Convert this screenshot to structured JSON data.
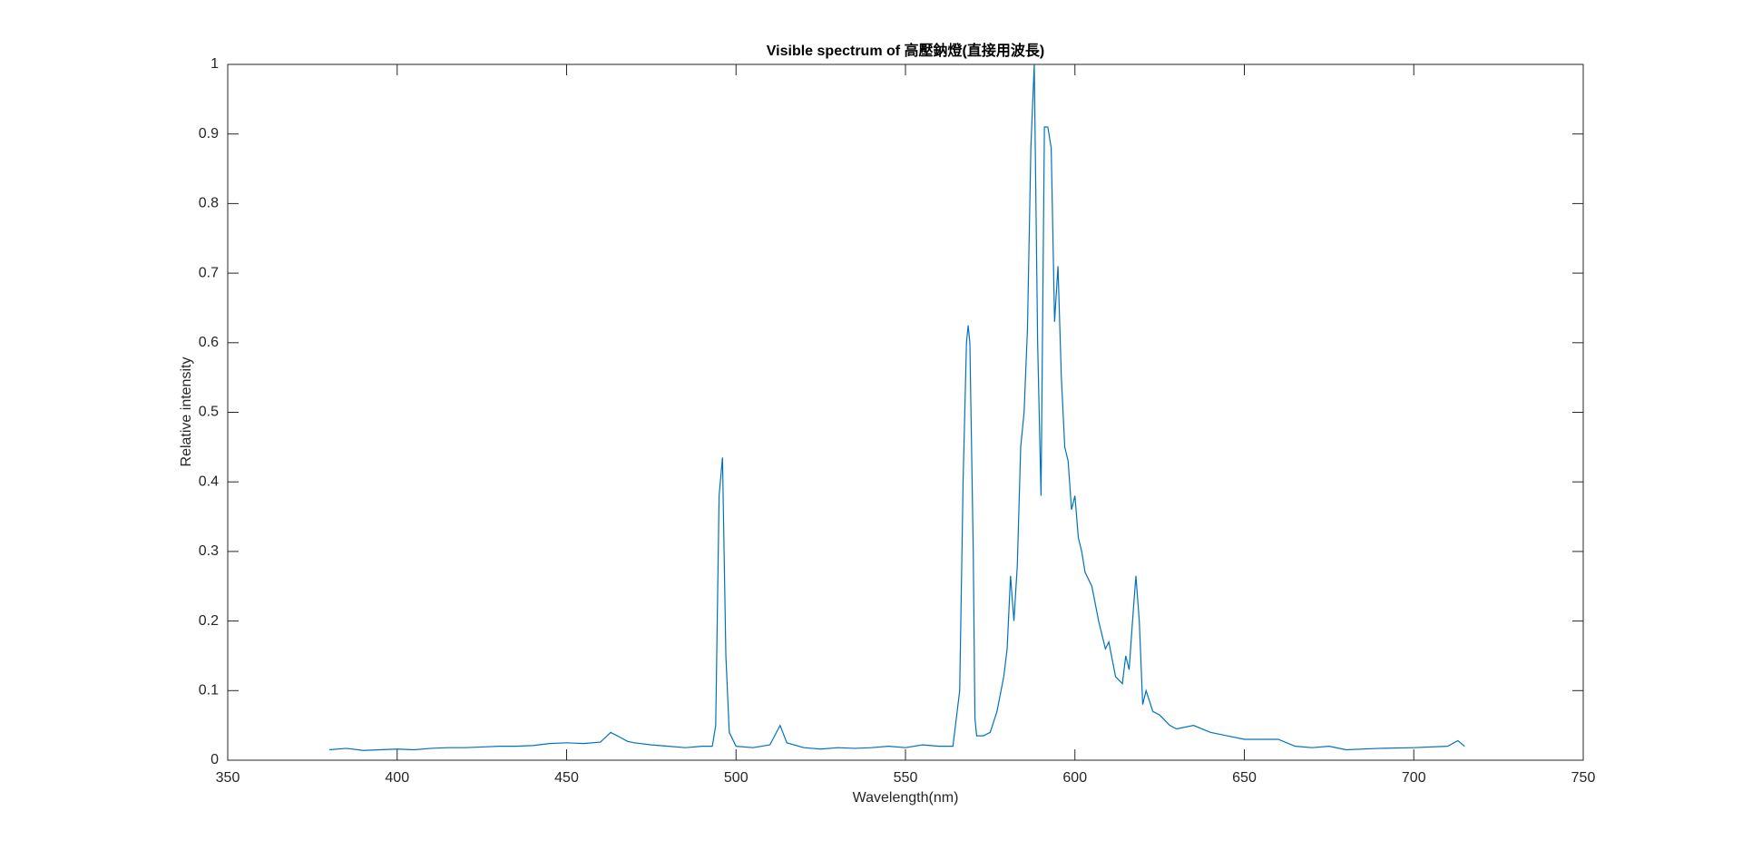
{
  "chart_data": {
    "type": "line",
    "title": "Visible spectrum of 高壓鈉燈(直接用波長)",
    "x_label": "Wavelength(nm)",
    "y_label": "Relative intensity",
    "x": [
      380,
      385,
      390,
      395,
      400,
      405,
      410,
      415,
      420,
      425,
      430,
      435,
      440,
      445,
      450,
      455,
      460,
      463,
      465,
      468,
      470,
      475,
      480,
      485,
      490,
      493,
      494,
      495,
      496,
      497,
      498,
      500,
      505,
      510,
      513,
      515,
      520,
      525,
      530,
      535,
      540,
      545,
      550,
      555,
      560,
      564,
      566,
      567,
      568,
      568.5,
      569,
      570,
      570.5,
      571,
      573,
      575,
      577,
      579,
      580,
      581,
      582,
      583,
      584,
      585,
      586,
      587,
      588,
      589,
      590,
      591,
      592,
      593,
      594,
      595,
      596,
      597,
      598,
      599,
      600,
      601,
      602,
      603,
      605,
      607,
      609,
      610,
      612,
      614,
      615,
      616,
      617,
      618,
      619,
      620,
      621,
      623,
      625,
      628,
      630,
      635,
      640,
      645,
      650,
      655,
      660,
      665,
      670,
      675,
      680,
      690,
      700,
      710,
      713,
      715
    ],
    "series": [
      {
        "name": "Relative intensity",
        "color": "#0072bd",
        "values": [
          0.015,
          0.017,
          0.014,
          0.015,
          0.016,
          0.015,
          0.017,
          0.018,
          0.018,
          0.019,
          0.02,
          0.02,
          0.021,
          0.024,
          0.025,
          0.024,
          0.026,
          0.04,
          0.035,
          0.027,
          0.025,
          0.022,
          0.02,
          0.018,
          0.02,
          0.02,
          0.05,
          0.38,
          0.435,
          0.15,
          0.04,
          0.02,
          0.018,
          0.022,
          0.05,
          0.025,
          0.018,
          0.016,
          0.018,
          0.017,
          0.018,
          0.02,
          0.018,
          0.022,
          0.02,
          0.02,
          0.1,
          0.4,
          0.6,
          0.625,
          0.6,
          0.3,
          0.06,
          0.035,
          0.035,
          0.04,
          0.07,
          0.12,
          0.16,
          0.265,
          0.2,
          0.28,
          0.45,
          0.5,
          0.62,
          0.88,
          1.0,
          0.6,
          0.38,
          0.91,
          0.91,
          0.88,
          0.63,
          0.71,
          0.55,
          0.45,
          0.43,
          0.36,
          0.38,
          0.32,
          0.3,
          0.27,
          0.25,
          0.2,
          0.16,
          0.17,
          0.12,
          0.11,
          0.15,
          0.13,
          0.2,
          0.265,
          0.2,
          0.08,
          0.1,
          0.07,
          0.065,
          0.05,
          0.045,
          0.05,
          0.04,
          0.035,
          0.03,
          0.03,
          0.03,
          0.02,
          0.018,
          0.02,
          0.015,
          0.017,
          0.018,
          0.02,
          0.028,
          0.02
        ]
      }
    ],
    "xlim": [
      350,
      750
    ],
    "xticks": [
      350,
      400,
      450,
      500,
      550,
      600,
      650,
      700,
      750
    ],
    "ylim": [
      0,
      1
    ],
    "yticks": [
      0,
      0.1,
      0.2,
      0.3,
      0.4,
      0.5,
      0.6,
      0.7,
      0.8,
      0.9,
      1
    ]
  }
}
